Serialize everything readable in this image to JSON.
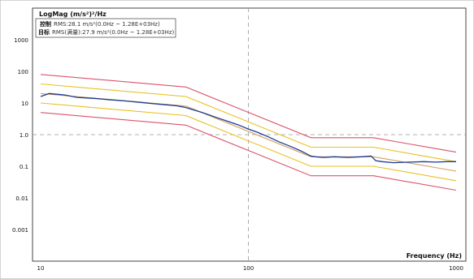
{
  "chart_data": {
    "type": "line",
    "ylabel": "LogMag (m/s²)²/Hz",
    "xlabel": "Frequency (Hz)",
    "x_scale": "log",
    "y_scale": "log",
    "xlim": [
      10,
      1000
    ],
    "ylim": [
      0.0001,
      10000
    ],
    "x_ticks": [
      {
        "value": 10,
        "label": "10"
      },
      {
        "value": 100,
        "label": "100"
      },
      {
        "value": 1000,
        "label": "1000"
      }
    ],
    "y_ticks": [
      {
        "value": 1000,
        "label": "1000"
      },
      {
        "value": 100,
        "label": "100"
      },
      {
        "value": 10,
        "label": "10"
      },
      {
        "value": 1,
        "label": "1.0"
      },
      {
        "value": 0.1,
        "label": "0.1"
      },
      {
        "value": 0.01,
        "label": "0.01"
      },
      {
        "value": 0.001,
        "label": "0.001"
      }
    ],
    "grid": "dashed center lines",
    "legend": [
      {
        "name": "控制",
        "text": "RMS:28.1 m/s²(0.0Hz ~ 1.28E+03Hz)"
      },
      {
        "name": "目标",
        "text": "RMS(满量):27.9 m/s²(0.0Hz ~ 1.28E+03Hz)"
      }
    ],
    "legend_position": "top-left",
    "colors": {
      "abort": "#d9546a",
      "alarm": "#e8c020",
      "reference": "#d2a060",
      "control": "#1c3a92"
    },
    "profile": {
      "x": [
        10,
        50,
        200,
        400,
        1000
      ],
      "reference": [
        20,
        8,
        0.2,
        0.2,
        0.07
      ]
    },
    "bands": [
      {
        "role": "abort_upper",
        "factor": 4
      },
      {
        "role": "alarm_upper",
        "factor": 2
      },
      {
        "role": "alarm_lower",
        "factor": 0.5
      },
      {
        "role": "abort_lower",
        "factor": 0.25
      }
    ],
    "series": [
      {
        "role": "control",
        "x": [
          10,
          11,
          13,
          15,
          18,
          22,
          26,
          30,
          35,
          40,
          45,
          50,
          60,
          70,
          80,
          90,
          100,
          110,
          125,
          140,
          160,
          180,
          200,
          210,
          230,
          260,
          300,
          350,
          390,
          410,
          440,
          500,
          600,
          700,
          800,
          900,
          1000
        ],
        "y": [
          16,
          20,
          18,
          15,
          14,
          12.5,
          11.5,
          10.5,
          9.5,
          8.8,
          8.2,
          7.2,
          5,
          3.5,
          2.6,
          2,
          1.5,
          1.2,
          0.85,
          0.6,
          0.42,
          0.3,
          0.21,
          0.2,
          0.19,
          0.2,
          0.19,
          0.2,
          0.21,
          0.15,
          0.14,
          0.13,
          0.135,
          0.14,
          0.135,
          0.14,
          0.14
        ]
      }
    ]
  }
}
